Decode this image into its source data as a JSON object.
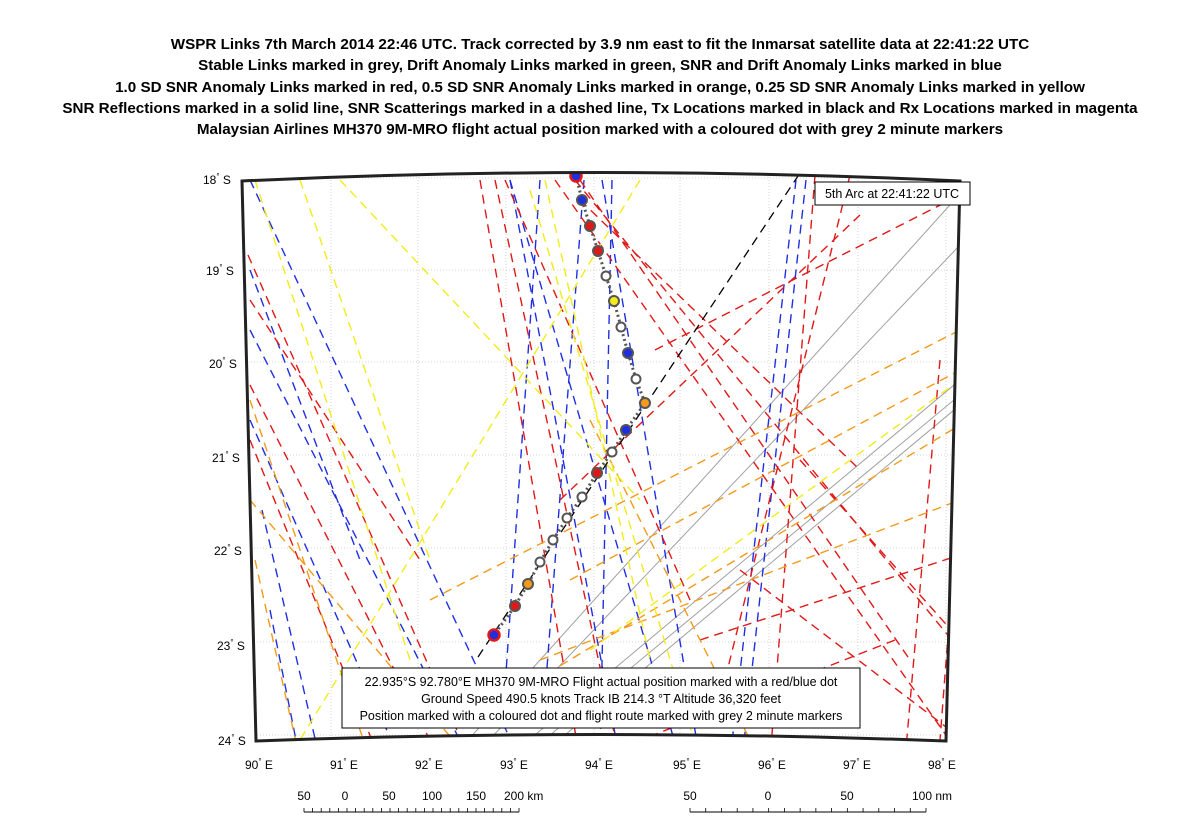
{
  "title_lines": [
    "WSPR Links 7th March 2014 22:46 UTC. Track corrected by 3.9 nm east to fit the Inmarsat satellite data at 22:41:22 UTC",
    "Stable Links marked in grey, Drift Anomaly Links marked in green, SNR and Drift Anomaly Links marked in blue",
    "1.0 SD SNR Anomaly Links marked in red, 0.5 SD SNR Anomaly Links marked in orange, 0.25 SD SNR Anomaly Links marked in yellow",
    "SNR Reflections marked in a solid line, SNR Scatterings marked in a dashed line, Tx Locations marked in black and Rx Locations marked in magenta",
    "Malaysian Airlines MH370 9M-MRO flight actual position marked with a coloured dot with grey 2 minute markers"
  ],
  "map": {
    "lat_labels": [
      {
        "value": "18",
        "hemi": "S"
      },
      {
        "value": "19",
        "hemi": "S"
      },
      {
        "value": "20",
        "hemi": "S"
      },
      {
        "value": "21",
        "hemi": "S"
      },
      {
        "value": "22",
        "hemi": "S"
      },
      {
        "value": "23",
        "hemi": "S"
      },
      {
        "value": "24",
        "hemi": "S"
      }
    ],
    "lon_labels": [
      {
        "value": "90",
        "hemi": "E"
      },
      {
        "value": "91",
        "hemi": "E"
      },
      {
        "value": "92",
        "hemi": "E"
      },
      {
        "value": "93",
        "hemi": "E"
      },
      {
        "value": "94",
        "hemi": "E"
      },
      {
        "value": "95",
        "hemi": "E"
      },
      {
        "value": "96",
        "hemi": "E"
      },
      {
        "value": "97",
        "hemi": "E"
      },
      {
        "value": "98",
        "hemi": "E"
      }
    ],
    "arc_label": "5th Arc at 22:41:22 UTC",
    "info_box": [
      "22.935°S 92.780°E MH370 9M-MRO Flight actual position marked with a red/blue dot",
      "Ground Speed 490.5 knots Track IB 214.3 °T Altitude 36,320 feet",
      "Position marked with a coloured dot and flight route marked with grey 2 minute markers"
    ],
    "scale_km": [
      "50",
      "0",
      "50",
      "100",
      "150",
      "200 km"
    ],
    "scale_nm": [
      "50",
      "0",
      "50",
      "100 nm"
    ],
    "colors": {
      "stable": "#a0a0a0",
      "snr_drift": "#1f2fe0",
      "sd10": "#e01818",
      "sd05": "#f39a1a",
      "sd025": "#f2ec1a",
      "arc": "#000000",
      "grid": "#c9c9c9"
    },
    "track_markers": [
      "red-blue",
      "blue",
      "red",
      "red",
      "grey",
      "yellow",
      "grey",
      "blue",
      "grey",
      "orange",
      "blue",
      "grey",
      "red",
      "grey",
      "grey",
      "grey",
      "grey",
      "orange",
      "red",
      "red-blue"
    ]
  }
}
